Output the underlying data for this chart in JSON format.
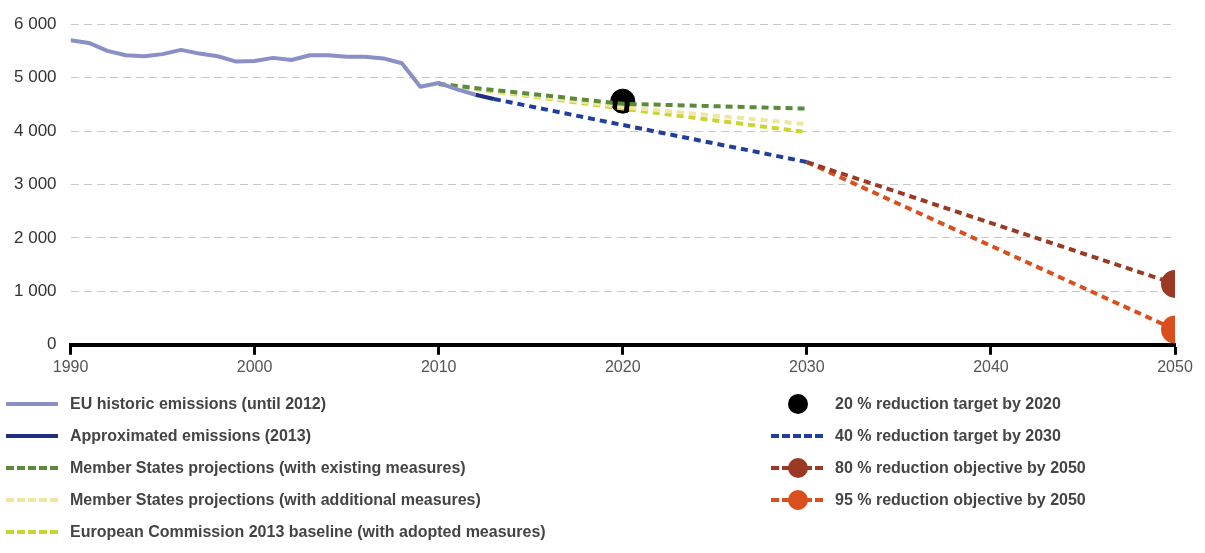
{
  "chart_data": {
    "type": "line",
    "x": [
      1990,
      1991,
      1992,
      1993,
      1994,
      1995,
      1996,
      1997,
      1998,
      1999,
      2000,
      2001,
      2002,
      2003,
      2004,
      2005,
      2006,
      2007,
      2008,
      2009,
      2010,
      2011,
      2012
    ],
    "xlim": [
      1990,
      2050
    ],
    "xticks": [
      1990,
      2000,
      2010,
      2020,
      2030,
      2040,
      2050
    ],
    "ylim": [
      0,
      6000
    ],
    "yticks": [
      {
        "value": 0,
        "label": "0"
      },
      {
        "value": 1000,
        "label": "1 000"
      },
      {
        "value": 2000,
        "label": "2 000"
      },
      {
        "value": 3000,
        "label": "3 000"
      },
      {
        "value": 4000,
        "label": "4 000"
      },
      {
        "value": 5000,
        "label": "5 000"
      },
      {
        "value": 6000,
        "label": "6 000"
      }
    ],
    "grid": "y",
    "legend": "bottom",
    "series": [
      {
        "name": "EU historic emissions (until 2012)",
        "color": "#8a8fc6",
        "line_style": "solid",
        "values": [
          5700,
          5650,
          5500,
          5420,
          5400,
          5440,
          5520,
          5450,
          5400,
          5300,
          5310,
          5370,
          5330,
          5420,
          5420,
          5390,
          5390,
          5360,
          5270,
          4830,
          4900,
          4780,
          4680
        ]
      },
      {
        "name": "Approximated emissions (2013)",
        "color": "#1f2f80",
        "line_style": "solid",
        "x": [
          2012,
          2013
        ],
        "values": [
          4680,
          4600
        ]
      },
      {
        "name": "Member States projections (with existing measures)",
        "color": "#5a8a3a",
        "line_style": "dashed",
        "x": [
          2010,
          2020,
          2030
        ],
        "values": [
          4880,
          4510,
          4420
        ]
      },
      {
        "name": "Member States projections (with additional measures)",
        "color": "#f0e6a0",
        "line_style": "dashed",
        "x": [
          2010,
          2020,
          2030
        ],
        "values": [
          4880,
          4450,
          4130
        ]
      },
      {
        "name": "European Commission 2013 baseline (with adopted measures)",
        "color": "#c9d431",
        "line_style": "dashed",
        "x": [
          2010,
          2020,
          2030
        ],
        "values": [
          4880,
          4420,
          3980
        ]
      },
      {
        "name": "20 % reduction target by 2020",
        "type": "scatter",
        "color": "#000000",
        "marker": "circle",
        "x": [
          2020
        ],
        "values": [
          4560
        ]
      },
      {
        "name": "40 % reduction target by 2030",
        "color": "#1f3f9a",
        "line_style": "dashed",
        "x": [
          2013,
          2030
        ],
        "values": [
          4600,
          3420
        ]
      },
      {
        "name": "80 % reduction objective by 2050",
        "color": "#9a3a25",
        "line_style": "dashed",
        "marker": "circle",
        "x": [
          2030,
          2050
        ],
        "values": [
          3420,
          1140
        ]
      },
      {
        "name": "95 % reduction objective by 2050",
        "color": "#d9501e",
        "line_style": "dashed",
        "marker": "circle",
        "x": [
          2030,
          2050
        ],
        "values": [
          3420,
          285
        ]
      }
    ]
  }
}
